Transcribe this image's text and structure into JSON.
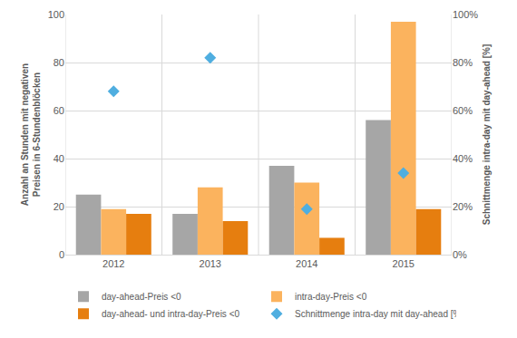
{
  "chart_data": {
    "type": "bar",
    "categories": [
      "2012",
      "2013",
      "2014",
      "2015"
    ],
    "y_label": "Anzahl an Stunden mit negativen\nPreisen in 6-Stundenblöcken",
    "y2_label": "Schnittmenge intra-day mit day-ahead [%]",
    "ylim": [
      0,
      100
    ],
    "yticks": [
      0,
      20,
      40,
      60,
      80,
      100
    ],
    "y2lim": [
      0,
      100
    ],
    "y2ticks": [
      {
        "value": 0,
        "label": "0%"
      },
      {
        "value": 20,
        "label": "20%"
      },
      {
        "value": 40,
        "label": "40%"
      },
      {
        "value": 60,
        "label": "60%"
      },
      {
        "value": 80,
        "label": "80%"
      },
      {
        "value": 100,
        "label": "100%"
      }
    ],
    "grid": true,
    "legend": "bottom",
    "series": [
      {
        "name": "day-ahead-Preis <0",
        "type": "bar",
        "color": "#a6a6a6",
        "values": [
          25,
          17,
          37,
          56
        ]
      },
      {
        "name": "intra-day-Preis <0",
        "type": "bar",
        "color": "#fbb35e",
        "values": [
          19,
          28,
          30,
          97
        ]
      },
      {
        "name": "day-ahead- und intra-day-Preis <0",
        "type": "bar",
        "color": "#e67e0f",
        "values": [
          17,
          14,
          7,
          19
        ]
      },
      {
        "name": "Schnittmenge intra-day mit day-ahead [%]",
        "type": "scatter",
        "marker": "diamond",
        "color": "#4faee0",
        "axis": "y2",
        "values": [
          68,
          82,
          19,
          34
        ]
      }
    ]
  }
}
